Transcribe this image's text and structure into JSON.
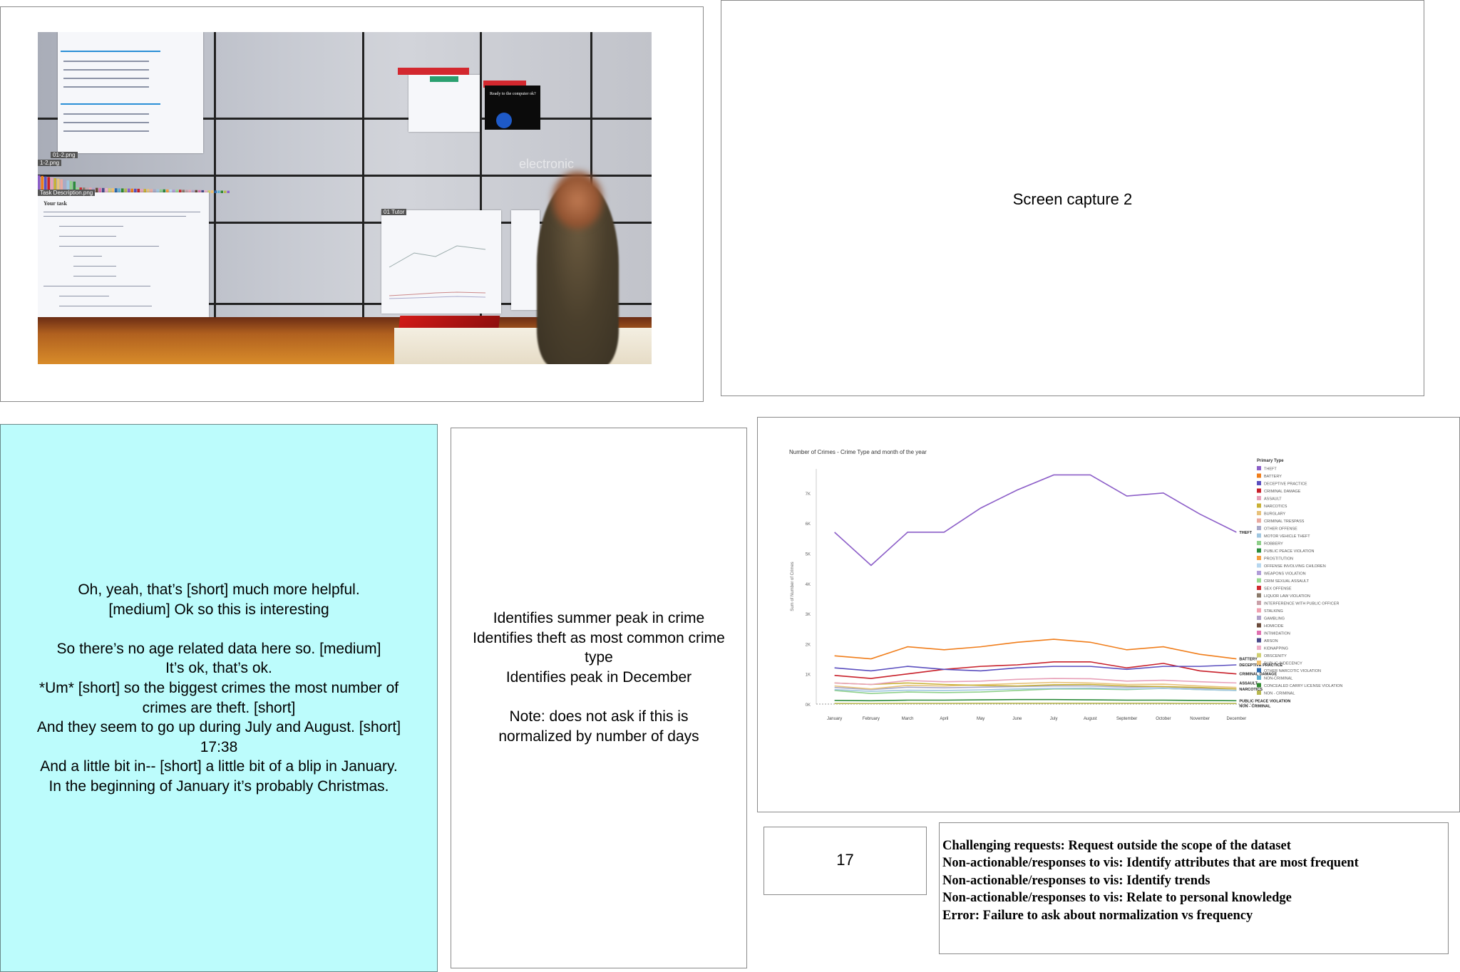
{
  "photo": {
    "label_1": "01-2.png",
    "label_2": "1-2.png",
    "label_3": "Task Description.png",
    "task_heading": "Your task",
    "window_label": "01 Tutor",
    "black_window_text": "Ready to the computer ok?",
    "logo_text": "electronic"
  },
  "capture2": {
    "label": "Screen capture 2"
  },
  "transcript": {
    "lines": [
      "Oh, yeah, that’s [short] much more helpful.",
      "[medium] Ok so this is interesting",
      "",
      "So there’s no age related data here so. [medium]",
      "It’s ok, that’s ok.",
      "*Um* [short] so the biggest crimes the most number of",
      "crimes are theft. [short]",
      "And they seem to go up during July and August. [short]",
      "17:38",
      "And a little bit in-- [short] a little bit of a blip in January.",
      "In the beginning of January it’s probably Christmas."
    ]
  },
  "observations": {
    "lines": [
      "Identifies summer peak in crime",
      "Identifies theft as most common crime",
      "type",
      "Identifies peak in December",
      "",
      "Note: does not ask if this is",
      "normalized by number of days"
    ]
  },
  "page_number": "17",
  "codes": {
    "lines": [
      "Challenging requests: Request outside the scope of the dataset",
      "Non-actionable/responses to vis: Identify attributes that are most frequent",
      "Non-actionable/responses to vis: Identify trends",
      "Non-actionable/responses to vis: Relate to personal knowledge",
      "Error: Failure to ask about normalization vs frequency"
    ]
  },
  "chart_data": {
    "type": "line",
    "title": "Number of Crimes - Crime Type and month of the year",
    "ylabel": "Sum of Number of Crimes",
    "xlabel": "",
    "categories": [
      "January",
      "February",
      "March",
      "April",
      "May",
      "June",
      "July",
      "August",
      "September",
      "October",
      "November",
      "December"
    ],
    "y_ticks": [
      "0K",
      "1K",
      "2K",
      "3K",
      "4K",
      "5K",
      "6K",
      "7K"
    ],
    "ylim": [
      0,
      7800
    ],
    "legend_title": "Primary Type",
    "legend_position": "right",
    "series": [
      {
        "name": "THEFT",
        "color": "#8c5ec8",
        "values": [
          5700,
          4600,
          5700,
          5700,
          6500,
          7100,
          7600,
          7600,
          6900,
          7000,
          6300,
          5700
        ],
        "end_label": "THEFT"
      },
      {
        "name": "BATTERY",
        "color": "#f07d1a",
        "values": [
          1600,
          1500,
          1900,
          1800,
          1900,
          2050,
          2150,
          2050,
          1800,
          1900,
          1650,
          1500
        ],
        "end_label": "BATTERY"
      },
      {
        "name": "DECEPTIVE PRACTICE",
        "color": "#5b4fbf",
        "values": [
          1200,
          1100,
          1250,
          1150,
          1100,
          1200,
          1250,
          1250,
          1150,
          1250,
          1250,
          1300
        ],
        "end_label": "DECEPTIVE PRACTICE"
      },
      {
        "name": "CRIMINAL DAMAGE",
        "color": "#c8202a",
        "values": [
          950,
          850,
          1000,
          1150,
          1250,
          1300,
          1400,
          1400,
          1200,
          1350,
          1100,
          1000
        ],
        "end_label": "CRIMINAL DAMAGE"
      },
      {
        "name": "ASSAULT",
        "color": "#e8a0b8",
        "values": [
          700,
          650,
          780,
          740,
          760,
          820,
          850,
          840,
          760,
          790,
          740,
          700
        ],
        "end_label": "ASSAULT"
      },
      {
        "name": "NARCOTICS",
        "color": "#c8b034",
        "values": [
          700,
          650,
          700,
          650,
          620,
          600,
          640,
          650,
          600,
          580,
          550,
          500
        ],
        "end_label": "NARCOTICS"
      },
      {
        "name": "BURGLARY",
        "color": "#e8c27a",
        "values": [
          600,
          500,
          620,
          600,
          640,
          680,
          720,
          700,
          650,
          660,
          600,
          550
        ],
        "end_label": ""
      },
      {
        "name": "OTHER OFFENSE",
        "color": "#a9a9c8",
        "values": [
          550,
          480,
          560,
          540,
          560,
          580,
          600,
          600,
          560,
          570,
          520,
          500
        ],
        "end_label": ""
      },
      {
        "name": "MOTOR VEHICLE THEFT",
        "color": "#9fc6e0",
        "values": [
          480,
          420,
          460,
          450,
          470,
          500,
          520,
          530,
          500,
          520,
          480,
          450
        ],
        "end_label": ""
      },
      {
        "name": "ROBBERY",
        "color": "#8fd08a",
        "values": [
          450,
          350,
          400,
          380,
          400,
          450,
          500,
          500,
          480,
          520,
          480,
          450
        ],
        "end_label": ""
      },
      {
        "name": "PUBLIC PEACE VIOLATION",
        "color": "#2c8c3c",
        "values": [
          120,
          110,
          130,
          130,
          140,
          150,
          150,
          140,
          130,
          130,
          120,
          110
        ],
        "end_label": "PUBLIC PEACE VIOLATION"
      },
      {
        "name": "NON - CRIMINAL",
        "color": "#b8b850",
        "values": [
          20,
          18,
          22,
          22,
          24,
          26,
          26,
          26,
          24,
          24,
          22,
          20
        ],
        "end_label": "NON - CRIMINAL"
      }
    ],
    "legend_entries": [
      {
        "label": "THEFT",
        "color": "#8c5ec8"
      },
      {
        "label": "BATTERY",
        "color": "#f07d1a"
      },
      {
        "label": "DECEPTIVE PRACTICE",
        "color": "#5b4fbf"
      },
      {
        "label": "CRIMINAL DAMAGE",
        "color": "#c8202a"
      },
      {
        "label": "ASSAULT",
        "color": "#e8a0b8"
      },
      {
        "label": "NARCOTICS",
        "color": "#c8b034"
      },
      {
        "label": "BURGLARY",
        "color": "#e8c27a"
      },
      {
        "label": "CRIMINAL TRESPASS",
        "color": "#e9a9a0"
      },
      {
        "label": "OTHER OFFENSE",
        "color": "#a9a9c8"
      },
      {
        "label": "MOTOR VEHICLE THEFT",
        "color": "#9fc6e0"
      },
      {
        "label": "ROBBERY",
        "color": "#8fd08a"
      },
      {
        "label": "PUBLIC PEACE VIOLATION",
        "color": "#2c8c3c"
      },
      {
        "label": "PROSTITUTION",
        "color": "#f5a040"
      },
      {
        "label": "OFFENSE INVOLVING CHILDREN",
        "color": "#b7d7ef"
      },
      {
        "label": "WEAPONS VIOLATION",
        "color": "#b09cd8"
      },
      {
        "label": "CRIM SEXUAL ASSAULT",
        "color": "#98d890"
      },
      {
        "label": "SEX OFFENSE",
        "color": "#d02a30"
      },
      {
        "label": "LIQUOR LAW VIOLATION",
        "color": "#8a7a6a"
      },
      {
        "label": "INTERFERENCE WITH PUBLIC OFFICER",
        "color": "#c9a0a8"
      },
      {
        "label": "STALKING",
        "color": "#f0a0b0"
      },
      {
        "label": "GAMBLING",
        "color": "#b0a0c8"
      },
      {
        "label": "HOMICIDE",
        "color": "#6a4a3a"
      },
      {
        "label": "INTIMIDATION",
        "color": "#e070b0"
      },
      {
        "label": "ARSON",
        "color": "#4a4a8a"
      },
      {
        "label": "KIDNAPPING",
        "color": "#f0b0c8"
      },
      {
        "label": "OBSCENITY",
        "color": "#d0d070"
      },
      {
        "label": "PUBLIC INDECENCY",
        "color": "#f0c070"
      },
      {
        "label": "OTHER NARCOTIC VIOLATION",
        "color": "#2a6ab0"
      },
      {
        "label": "NON-CRIMINAL",
        "color": "#60b0d0"
      },
      {
        "label": "CONCEALED CARRY LICENSE VIOLATION",
        "color": "#308a30"
      },
      {
        "label": "NON - CRIMINAL",
        "color": "#b8b850"
      }
    ]
  }
}
